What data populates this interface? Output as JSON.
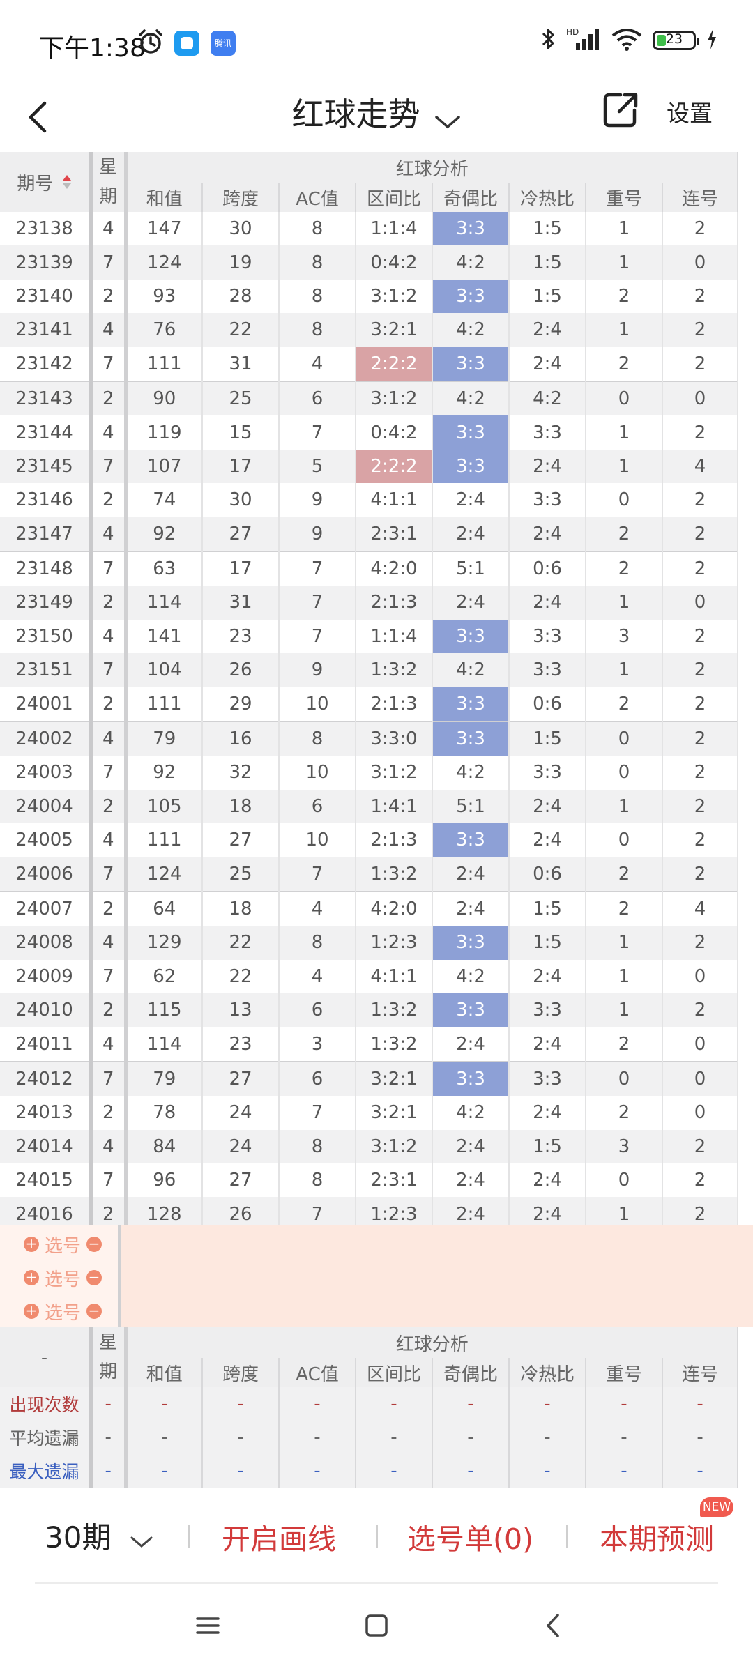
{
  "status_bar": {
    "time": "下午1:38",
    "app_icon_2_text": "腾讯",
    "battery": "23",
    "battery_level": 0.23,
    "icons": [
      "alarm-icon",
      "app-icon",
      "app-icon",
      "bluetooth-icon",
      "signal-icon",
      "wifi-icon",
      "battery-icon",
      "charging-icon"
    ]
  },
  "header": {
    "title": "红球走势",
    "settings_label": "设置",
    "icons": [
      "back-arrow-icon",
      "chevron-down-icon",
      "share-icon"
    ]
  },
  "table": {
    "col_period": "期号",
    "col_weekday": "星期",
    "group_label": "红球分析",
    "columns": [
      "和值",
      "跨度",
      "AC值",
      "区间比",
      "奇偶比",
      "冷热比",
      "重号",
      "连号"
    ],
    "rows": [
      {
        "period": "23138",
        "week": "4",
        "cells": [
          "147",
          "30",
          "8",
          "1:1:4",
          "3:3",
          "1:5",
          "1",
          "2"
        ]
      },
      {
        "period": "23139",
        "week": "7",
        "cells": [
          "124",
          "19",
          "8",
          "0:4:2",
          "4:2",
          "1:5",
          "1",
          "0"
        ]
      },
      {
        "period": "23140",
        "week": "2",
        "cells": [
          "93",
          "28",
          "8",
          "3:1:2",
          "3:3",
          "1:5",
          "2",
          "2"
        ]
      },
      {
        "period": "23141",
        "week": "4",
        "cells": [
          "76",
          "22",
          "8",
          "3:2:1",
          "4:2",
          "2:4",
          "1",
          "2"
        ]
      },
      {
        "period": "23142",
        "week": "7",
        "cells": [
          "111",
          "31",
          "4",
          "2:2:2",
          "3:3",
          "2:4",
          "2",
          "2"
        ]
      },
      {
        "period": "23143",
        "week": "2",
        "cells": [
          "90",
          "25",
          "6",
          "3:1:2",
          "4:2",
          "4:2",
          "0",
          "0"
        ]
      },
      {
        "period": "23144",
        "week": "4",
        "cells": [
          "119",
          "15",
          "7",
          "0:4:2",
          "3:3",
          "3:3",
          "1",
          "2"
        ]
      },
      {
        "period": "23145",
        "week": "7",
        "cells": [
          "107",
          "17",
          "5",
          "2:2:2",
          "3:3",
          "2:4",
          "1",
          "4"
        ]
      },
      {
        "period": "23146",
        "week": "2",
        "cells": [
          "74",
          "30",
          "9",
          "4:1:1",
          "2:4",
          "3:3",
          "0",
          "2"
        ]
      },
      {
        "period": "23147",
        "week": "4",
        "cells": [
          "92",
          "27",
          "9",
          "2:3:1",
          "2:4",
          "2:4",
          "2",
          "2"
        ]
      },
      {
        "period": "23148",
        "week": "7",
        "cells": [
          "63",
          "17",
          "7",
          "4:2:0",
          "5:1",
          "0:6",
          "2",
          "2"
        ]
      },
      {
        "period": "23149",
        "week": "2",
        "cells": [
          "114",
          "31",
          "7",
          "2:1:3",
          "2:4",
          "2:4",
          "1",
          "0"
        ]
      },
      {
        "period": "23150",
        "week": "4",
        "cells": [
          "141",
          "23",
          "7",
          "1:1:4",
          "3:3",
          "3:3",
          "3",
          "2"
        ]
      },
      {
        "period": "23151",
        "week": "7",
        "cells": [
          "104",
          "26",
          "9",
          "1:3:2",
          "4:2",
          "3:3",
          "1",
          "2"
        ]
      },
      {
        "period": "24001",
        "week": "2",
        "cells": [
          "111",
          "29",
          "10",
          "2:1:3",
          "3:3",
          "0:6",
          "2",
          "2"
        ]
      },
      {
        "period": "24002",
        "week": "4",
        "cells": [
          "79",
          "16",
          "8",
          "3:3:0",
          "3:3",
          "1:5",
          "0",
          "2"
        ]
      },
      {
        "period": "24003",
        "week": "7",
        "cells": [
          "92",
          "32",
          "10",
          "3:1:2",
          "4:2",
          "3:3",
          "0",
          "2"
        ]
      },
      {
        "period": "24004",
        "week": "2",
        "cells": [
          "105",
          "18",
          "6",
          "1:4:1",
          "5:1",
          "2:4",
          "1",
          "2"
        ]
      },
      {
        "period": "24005",
        "week": "4",
        "cells": [
          "111",
          "27",
          "10",
          "2:1:3",
          "3:3",
          "2:4",
          "0",
          "2"
        ]
      },
      {
        "period": "24006",
        "week": "7",
        "cells": [
          "124",
          "25",
          "7",
          "1:3:2",
          "2:4",
          "0:6",
          "2",
          "2"
        ]
      },
      {
        "period": "24007",
        "week": "2",
        "cells": [
          "64",
          "18",
          "4",
          "4:2:0",
          "2:4",
          "1:5",
          "2",
          "4"
        ]
      },
      {
        "period": "24008",
        "week": "4",
        "cells": [
          "129",
          "22",
          "8",
          "1:2:3",
          "3:3",
          "1:5",
          "1",
          "2"
        ]
      },
      {
        "period": "24009",
        "week": "7",
        "cells": [
          "62",
          "22",
          "4",
          "4:1:1",
          "4:2",
          "2:4",
          "1",
          "0"
        ]
      },
      {
        "period": "24010",
        "week": "2",
        "cells": [
          "115",
          "13",
          "6",
          "1:3:2",
          "3:3",
          "3:3",
          "1",
          "2"
        ]
      },
      {
        "period": "24011",
        "week": "4",
        "cells": [
          "114",
          "23",
          "3",
          "1:3:2",
          "2:4",
          "2:4",
          "2",
          "0"
        ]
      },
      {
        "period": "24012",
        "week": "7",
        "cells": [
          "79",
          "27",
          "6",
          "3:2:1",
          "3:3",
          "3:3",
          "0",
          "0"
        ]
      },
      {
        "period": "24013",
        "week": "2",
        "cells": [
          "78",
          "24",
          "7",
          "3:2:1",
          "4:2",
          "2:4",
          "2",
          "0"
        ]
      },
      {
        "period": "24014",
        "week": "4",
        "cells": [
          "84",
          "24",
          "8",
          "3:1:2",
          "2:4",
          "1:5",
          "3",
          "2"
        ]
      },
      {
        "period": "24015",
        "week": "7",
        "cells": [
          "96",
          "27",
          "8",
          "2:3:1",
          "2:4",
          "2:4",
          "0",
          "2"
        ]
      },
      {
        "period": "24016",
        "week": "2",
        "cells": [
          "128",
          "26",
          "7",
          "1:2:3",
          "2:4",
          "2:4",
          "1",
          "2"
        ]
      }
    ],
    "highlight_colors": {
      "blue": "#8da0d6",
      "red": "#d9a3a5"
    }
  },
  "selection": {
    "label": "选号",
    "plus": "+",
    "minus": "−",
    "rows": 3
  },
  "summary": {
    "dash": "-",
    "col_weekday": "星期",
    "group_label": "红球分析",
    "columns": [
      "和值",
      "跨度",
      "AC值",
      "区间比",
      "奇偶比",
      "冷热比",
      "重号",
      "连号"
    ],
    "rows": [
      {
        "label": "出现次数",
        "color": "#b13b3b"
      },
      {
        "label": "平均遗漏",
        "color": "#666666"
      },
      {
        "label": "最大遗漏",
        "color": "#3a5fbf"
      }
    ]
  },
  "bottom_bar": {
    "periods": "30期",
    "draw_lines": "开启画线",
    "pick_list": "选号单(0)",
    "prediction": "本期预测",
    "new_badge": "NEW",
    "accent": "#d23a3a"
  },
  "nav": {
    "icons": [
      "menu-icon",
      "home-icon",
      "back-icon"
    ]
  }
}
